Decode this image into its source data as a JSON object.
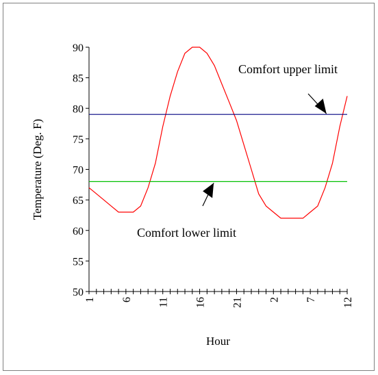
{
  "chart_data": {
    "type": "line",
    "title": "",
    "xlabel": "Hour",
    "ylabel": "Temperature (Deg. F)",
    "ylim": [
      50,
      90
    ],
    "yticks": [
      50,
      55,
      60,
      65,
      70,
      75,
      80,
      85,
      90
    ],
    "x_tick_labels": [
      "1",
      "6",
      "11",
      "16",
      "21",
      "2",
      "7",
      "12"
    ],
    "x": [
      1,
      2,
      3,
      4,
      5,
      6,
      7,
      8,
      9,
      10,
      11,
      12,
      13,
      14,
      15,
      16,
      17,
      18,
      19,
      20,
      21,
      22,
      23,
      24,
      25,
      26,
      27,
      28,
      29,
      30,
      31,
      32,
      33,
      34,
      35,
      36
    ],
    "series": [
      {
        "color": "#ff0000",
        "values": [
          67,
          66,
          65,
          64,
          63,
          63,
          63,
          64,
          67,
          71,
          77,
          82,
          86,
          89,
          90,
          90,
          89,
          87,
          84,
          81,
          78,
          74,
          70,
          66,
          64,
          63,
          62,
          62,
          62,
          62,
          63,
          64,
          67,
          71,
          77,
          82
        ]
      },
      {
        "color": "#000080",
        "values": [
          79,
          79,
          79,
          79,
          79,
          79,
          79,
          79,
          79,
          79,
          79,
          79,
          79,
          79,
          79,
          79,
          79,
          79,
          79,
          79,
          79,
          79,
          79,
          79,
          79,
          79,
          79,
          79,
          79,
          79,
          79,
          79,
          79,
          79,
          79,
          79
        ]
      },
      {
        "color": "#00c000",
        "values": [
          68,
          68,
          68,
          68,
          68,
          68,
          68,
          68,
          68,
          68,
          68,
          68,
          68,
          68,
          68,
          68,
          68,
          68,
          68,
          68,
          68,
          68,
          68,
          68,
          68,
          68,
          68,
          68,
          68,
          68,
          68,
          68,
          68,
          68,
          68,
          68
        ]
      }
    ],
    "annotations": [
      {
        "text": "Comfort upper limit",
        "target_x": 33,
        "target_y": 79,
        "arrow": "down-right"
      },
      {
        "text": "Comfort lower limit",
        "target_x": 18,
        "target_y": 68,
        "arrow": "up-right"
      }
    ],
    "grid": false,
    "legend": "none"
  }
}
